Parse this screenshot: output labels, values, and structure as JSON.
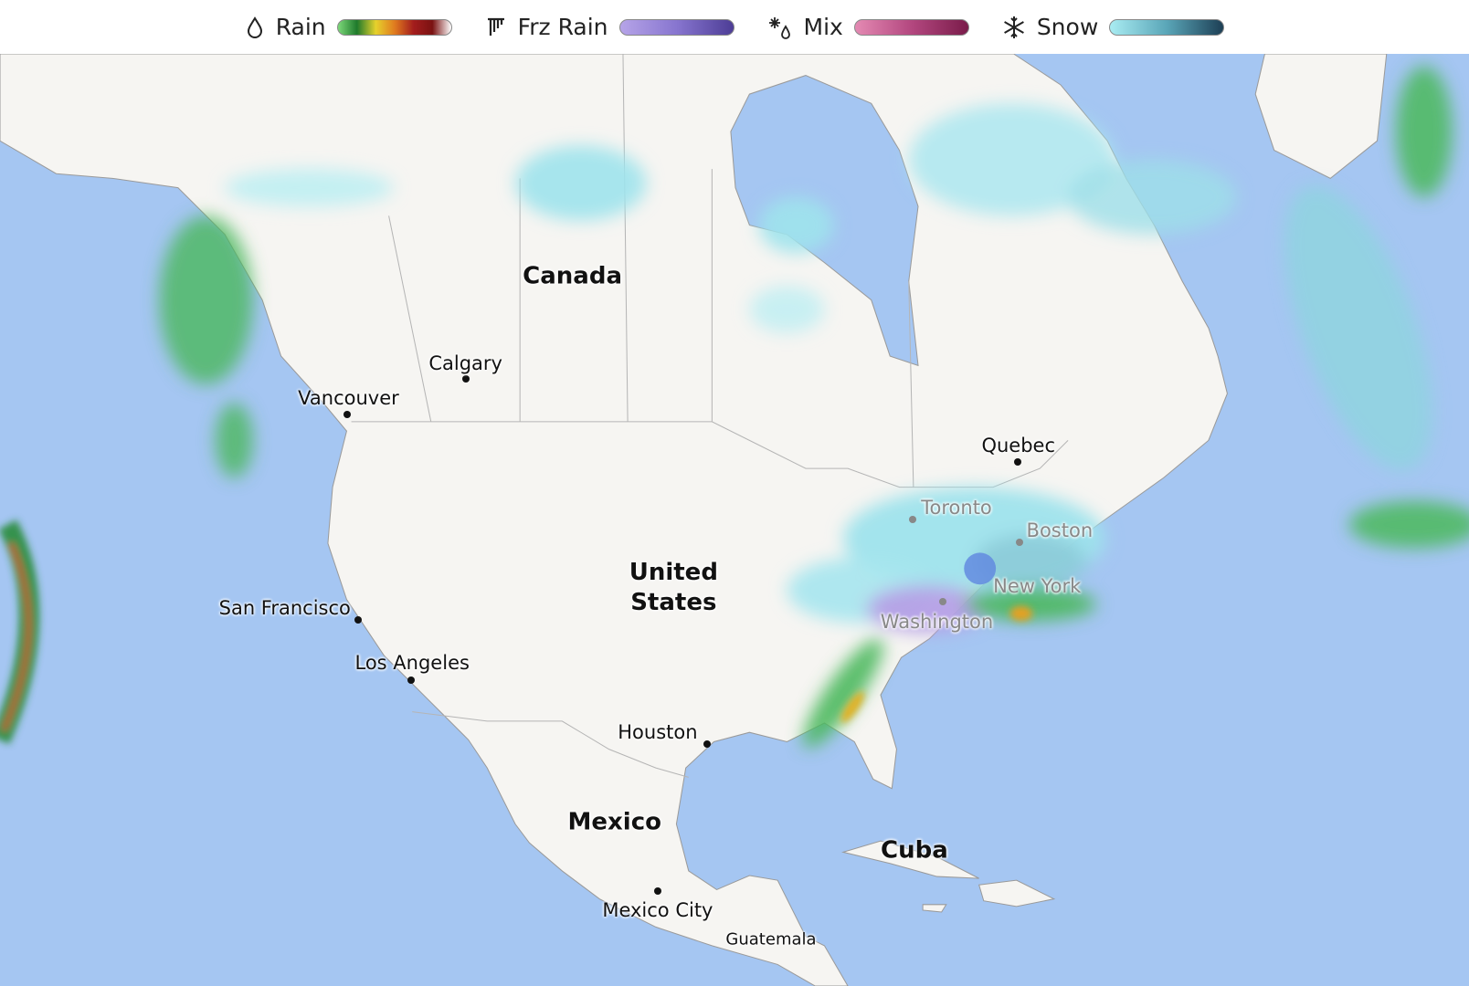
{
  "legend": [
    {
      "label": "Rain"
    },
    {
      "label": "Frz Rain"
    },
    {
      "label": "Mix"
    },
    {
      "label": "Snow"
    }
  ],
  "regions": [
    "Canada",
    "United States",
    "Mexico",
    "Cuba"
  ],
  "cities": [
    "Calgary",
    "Vancouver",
    "Quebec",
    "Toronto",
    "Boston",
    "New York",
    "Washington",
    "San Francisco",
    "Los Angeles",
    "Houston",
    "Mexico City",
    "Guatemala"
  ]
}
